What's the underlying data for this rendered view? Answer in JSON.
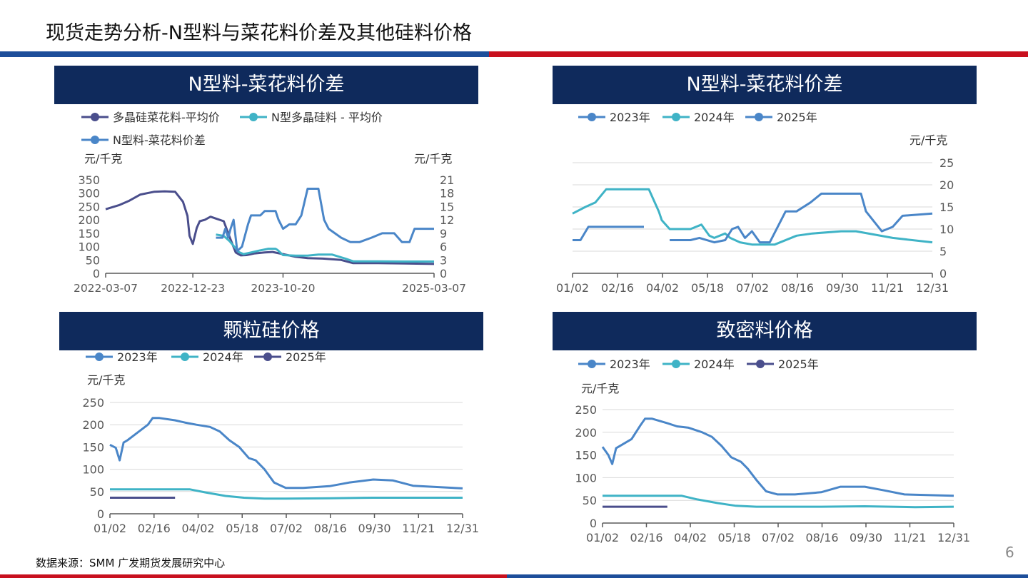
{
  "page": {
    "title": "现货走势分析-N型料与菜花料价差及其他硅料价格",
    "source": "数据来源：SMM 广发期货发展研究中心",
    "page_number": "6"
  },
  "colors": {
    "header_bg": "#0f2a5c",
    "rule_blue": "#1d4e9a",
    "rule_red": "#c8101e",
    "dark_series": "#4a4e8c",
    "teal_series": "#3fb3c6",
    "blue_series": "#4a86c8",
    "grid": "#d9d9d9"
  },
  "chart_data": [
    {
      "panel_title": "N型料-菜花料价差",
      "type": "line",
      "legend": [
        "多晶硅菜花料-平均价",
        "N型多晶硅料 - 平均价",
        "N型料-菜花料价差"
      ],
      "ylabel_left": "元/千克",
      "ylabel_right": "元/千克",
      "y_ticks": [
        "350",
        "300",
        "250",
        "200",
        "150",
        "100",
        "50",
        "0"
      ],
      "y2_ticks": [
        "21",
        "18",
        "15",
        "12",
        "9",
        "6",
        "3",
        "0"
      ],
      "x_ticks": [
        "2022-03-07",
        "2022-12-23",
        "2023-10-20",
        "2025-03-07"
      ],
      "ylim": [
        0,
        350
      ],
      "y2lim": [
        0,
        21
      ],
      "series": [
        {
          "name": "多晶硅菜花料-平均价",
          "axis": "left",
          "color": "#4a4e8c",
          "x": [
            "2022-03-07",
            "2022-04-20",
            "2022-05-25",
            "2022-07-01",
            "2022-08-15",
            "2022-09-20",
            "2022-10-25",
            "2022-11-20",
            "2022-12-05",
            "2022-12-12",
            "2022-12-23",
            "2023-01-05",
            "2023-01-15",
            "2023-02-01",
            "2023-02-20",
            "2023-03-10",
            "2023-04-05",
            "2023-04-25",
            "2023-05-15",
            "2023-06-01",
            "2023-06-20",
            "2023-07-15",
            "2023-08-20",
            "2023-09-15",
            "2023-10-20",
            "2023-11-30",
            "2024-01-10",
            "2024-03-01",
            "2024-05-01",
            "2024-06-10",
            "2024-09-01",
            "2024-12-01",
            "2025-03-07"
          ],
          "values": [
            240,
            255,
            272,
            295,
            305,
            307,
            305,
            268,
            215,
            140,
            110,
            170,
            195,
            200,
            212,
            205,
            195,
            135,
            78,
            67,
            68,
            74,
            78,
            80,
            72,
            62,
            57,
            55,
            50,
            38,
            38,
            37,
            35
          ]
        },
        {
          "name": "N型多晶硅料 - 平均价",
          "axis": "left",
          "color": "#3fb3c6",
          "x": [
            "2023-03-10",
            "2023-04-05",
            "2023-04-25",
            "2023-05-10",
            "2023-05-25",
            "2023-06-10",
            "2023-07-05",
            "2023-08-01",
            "2023-09-01",
            "2023-09-25",
            "2023-10-01",
            "2023-10-20",
            "2023-12-01",
            "2024-01-10",
            "2024-02-15",
            "2024-04-01",
            "2024-05-15",
            "2024-06-10",
            "2024-09-01",
            "2024-12-01",
            "2025-03-07"
          ],
          "values": [
            145,
            140,
            120,
            100,
            80,
            72,
            78,
            85,
            92,
            92,
            88,
            68,
            66,
            66,
            70,
            70,
            55,
            45,
            45,
            44,
            44
          ]
        },
        {
          "name": "N型料-菜花料价差",
          "axis": "right",
          "color": "#4a86c8",
          "x": [
            "2023-03-10",
            "2023-04-01",
            "2023-04-10",
            "2023-04-20",
            "2023-04-28",
            "2023-05-08",
            "2023-05-20",
            "2023-06-05",
            "2023-06-25",
            "2023-07-05",
            "2023-08-05",
            "2023-08-20",
            "2023-09-10",
            "2023-09-25",
            "2023-10-05",
            "2023-10-20",
            "2023-11-10",
            "2023-12-01",
            "2023-12-20",
            "2024-01-10",
            "2024-02-15",
            "2024-03-05",
            "2024-03-20",
            "2024-04-10",
            "2024-05-01",
            "2024-06-01",
            "2024-07-01",
            "2024-08-10",
            "2024-09-15",
            "2024-10-25",
            "2024-11-20",
            "2024-12-15",
            "2025-01-01",
            "2025-03-07"
          ],
          "values": [
            8,
            8,
            10,
            8,
            10,
            12,
            5,
            6,
            11,
            13,
            13,
            14,
            14,
            14,
            12,
            10,
            11,
            11,
            13,
            19,
            19,
            12,
            10,
            9,
            8,
            7,
            7,
            8,
            9,
            9,
            7,
            7,
            10,
            10
          ]
        }
      ]
    },
    {
      "panel_title": "N型料-菜花料价差",
      "type": "line",
      "legend": [
        "2023年",
        "2024年",
        "2025年"
      ],
      "ylabel": "元/千克",
      "y_ticks": [
        "25",
        "20",
        "15",
        "10",
        "5",
        "0"
      ],
      "x_ticks": [
        "01/02",
        "02/16",
        "04/02",
        "05/18",
        "07/02",
        "08/16",
        "09/30",
        "11/21",
        "12/31"
      ],
      "ylim": [
        0,
        25
      ],
      "series": [
        {
          "name": "2023年",
          "color": "#4a86c8",
          "x": [
            "01/02",
            "01/10",
            "01/18",
            "03/15"
          ],
          "values": [
            7.5,
            7.5,
            10.5,
            10.5
          ]
        },
        {
          "name": "2024年",
          "color": "#3fb3c6",
          "x": [
            "01/02",
            "01/15",
            "01/25",
            "02/05",
            "02/20",
            "03/20",
            "03/30",
            "04/02",
            "04/10",
            "05/01",
            "05/12",
            "05/20",
            "05/25",
            "06/05",
            "06/10",
            "06/20",
            "07/02",
            "07/25",
            "08/16",
            "09/01",
            "09/30",
            "10/15",
            "11/21",
            "12/31"
          ],
          "values": [
            13.5,
            15,
            16,
            19,
            19,
            19,
            14,
            12,
            10,
            10,
            11,
            8.5,
            8,
            9,
            8,
            7,
            6.5,
            6.5,
            8.5,
            9,
            9.5,
            9.5,
            8,
            7
          ]
        },
        {
          "name": "2025年",
          "color": "#4a86c8",
          "x": [
            "04/10",
            "05/01",
            "05/10",
            "05/25",
            "06/05",
            "06/12",
            "06/18",
            "06/25",
            "07/02",
            "07/10",
            "07/20",
            "08/05",
            "08/16",
            "08/30",
            "09/10",
            "09/30",
            "10/20",
            "10/25",
            "11/10",
            "11/21",
            "12/01",
            "12/31"
          ],
          "values": [
            7.5,
            7.5,
            8,
            7,
            7.5,
            10,
            10.5,
            8,
            9.5,
            7,
            7,
            14,
            14,
            16,
            18,
            18,
            18,
            14,
            9.5,
            10.5,
            13,
            13.5
          ]
        }
      ]
    },
    {
      "panel_title": "颗粒硅价格",
      "type": "line",
      "legend": [
        "2023年",
        "2024年",
        "2025年"
      ],
      "ylabel": "元/千克",
      "y_ticks": [
        "250",
        "200",
        "150",
        "100",
        "50",
        "0"
      ],
      "x_ticks": [
        "01/02",
        "02/16",
        "04/02",
        "05/18",
        "07/02",
        "08/16",
        "09/30",
        "11/21",
        "12/31"
      ],
      "ylim": [
        0,
        250
      ],
      "series": [
        {
          "name": "2023年",
          "color": "#4a86c8",
          "x": [
            "01/02",
            "01/08",
            "01/12",
            "01/16",
            "01/20",
            "02/01",
            "02/10",
            "02/15",
            "02/22",
            "03/10",
            "03/20",
            "04/01",
            "04/15",
            "04/25",
            "05/05",
            "05/15",
            "05/25",
            "06/01",
            "06/10",
            "06/20",
            "07/02",
            "07/20",
            "08/16",
            "09/05",
            "09/30",
            "10/20",
            "11/10",
            "12/31"
          ],
          "values": [
            155,
            148,
            120,
            160,
            165,
            185,
            200,
            215,
            215,
            210,
            205,
            200,
            195,
            185,
            165,
            150,
            125,
            120,
            100,
            70,
            58,
            58,
            62,
            70,
            77,
            75,
            63,
            57
          ]
        },
        {
          "name": "2024年",
          "color": "#3fb3c6",
          "x": [
            "01/02",
            "03/25",
            "04/10",
            "05/01",
            "05/20",
            "06/10",
            "07/02",
            "08/16",
            "09/30",
            "11/21",
            "12/31"
          ],
          "values": [
            55,
            55,
            48,
            40,
            36,
            34,
            34,
            35,
            36,
            36,
            36
          ]
        },
        {
          "name": "2025年",
          "color": "#4a4e8c",
          "x": [
            "01/02",
            "03/10"
          ],
          "values": [
            36,
            36
          ]
        }
      ]
    },
    {
      "panel_title": "致密料价格",
      "type": "line",
      "legend": [
        "2023年",
        "2024年",
        "2025年"
      ],
      "ylabel": "元/千克",
      "y_ticks": [
        "250",
        "200",
        "150",
        "100",
        "50",
        "0"
      ],
      "x_ticks": [
        "01/02",
        "02/16",
        "04/02",
        "05/18",
        "07/02",
        "08/16",
        "09/30",
        "11/21",
        "12/31"
      ],
      "ylim": [
        0,
        250
      ],
      "series": [
        {
          "name": "2023年",
          "color": "#4a86c8",
          "x": [
            "01/02",
            "01/08",
            "01/12",
            "01/16",
            "01/20",
            "02/01",
            "02/10",
            "02/15",
            "02/22",
            "03/10",
            "03/20",
            "04/01",
            "04/15",
            "04/25",
            "05/05",
            "05/15",
            "05/25",
            "06/01",
            "06/10",
            "06/20",
            "07/02",
            "07/20",
            "08/16",
            "09/05",
            "09/30",
            "10/20",
            "11/10",
            "12/31"
          ],
          "values": [
            168,
            150,
            130,
            165,
            170,
            185,
            215,
            230,
            230,
            220,
            213,
            210,
            200,
            190,
            170,
            145,
            135,
            120,
            95,
            70,
            63,
            63,
            68,
            80,
            80,
            72,
            63,
            60
          ]
        },
        {
          "name": "2024年",
          "color": "#3fb3c6",
          "x": [
            "01/02",
            "03/25",
            "04/10",
            "05/01",
            "05/20",
            "06/10",
            "07/02",
            "08/16",
            "09/30",
            "11/21",
            "12/31"
          ],
          "values": [
            60,
            60,
            52,
            44,
            38,
            36,
            36,
            36,
            37,
            35,
            36
          ]
        },
        {
          "name": "2025年",
          "color": "#4a4e8c",
          "x": [
            "01/02",
            "03/10"
          ],
          "values": [
            36,
            36
          ]
        }
      ]
    }
  ]
}
